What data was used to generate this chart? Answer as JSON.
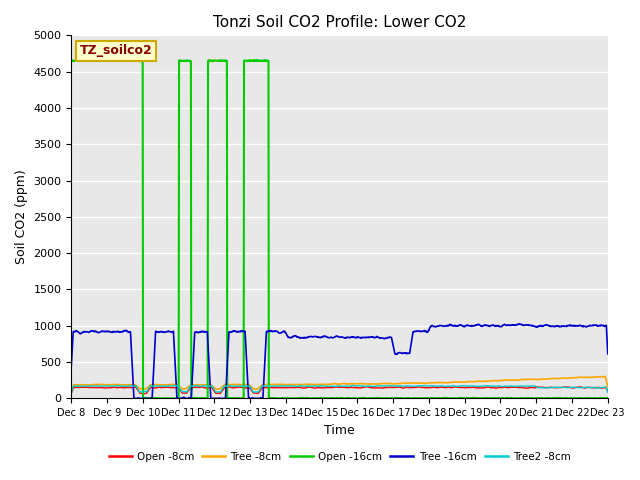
{
  "title": "Tonzi Soil CO2 Profile: Lower CO2",
  "ylabel": "Soil CO2 (ppm)",
  "xlabel": "Time",
  "ylim": [
    0,
    5000
  ],
  "background_color": "#e8e8e8",
  "legend_label": "TZ_soilco2",
  "x_tick_labels": [
    "Dec 8",
    "Dec 9",
    "Dec 10",
    "Dec 11",
    "Dec 12",
    "Dec 13",
    "Dec 14",
    "Dec 15",
    "Dec 16",
    "Dec 17",
    "Dec 18",
    "Dec 19",
    "Dec 20",
    "Dec 21",
    "Dec 22",
    "Dec 23"
  ],
  "series": {
    "Open -8cm": {
      "color": "#ff0000",
      "lw": 1.0
    },
    "Tree -8cm": {
      "color": "#ffa500",
      "lw": 1.2
    },
    "Open -16cm": {
      "color": "#00cc00",
      "lw": 1.5
    },
    "Tree -16cm": {
      "color": "#0000cc",
      "lw": 1.2
    },
    "Tree2 -8cm": {
      "color": "#00cccc",
      "lw": 1.0
    }
  }
}
